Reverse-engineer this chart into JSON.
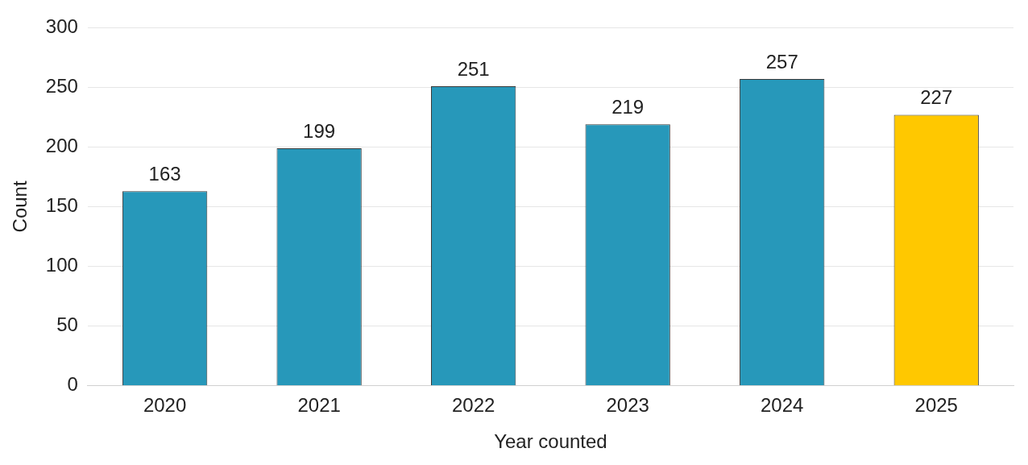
{
  "chart_data": {
    "type": "bar",
    "xlabel": "Year counted",
    "ylabel": "Count",
    "categories": [
      "2020",
      "2021",
      "2022",
      "2023",
      "2024",
      "2025"
    ],
    "values": [
      163,
      199,
      251,
      219,
      257,
      227
    ],
    "colors": [
      "#2798ba",
      "#2798ba",
      "#2798ba",
      "#2798ba",
      "#2798ba",
      "#ffc800"
    ],
    "ylim": [
      0,
      300
    ],
    "yticks": [
      0,
      50,
      100,
      150,
      200,
      250,
      300
    ],
    "grid": "y",
    "data_labels": true,
    "legend": false
  }
}
